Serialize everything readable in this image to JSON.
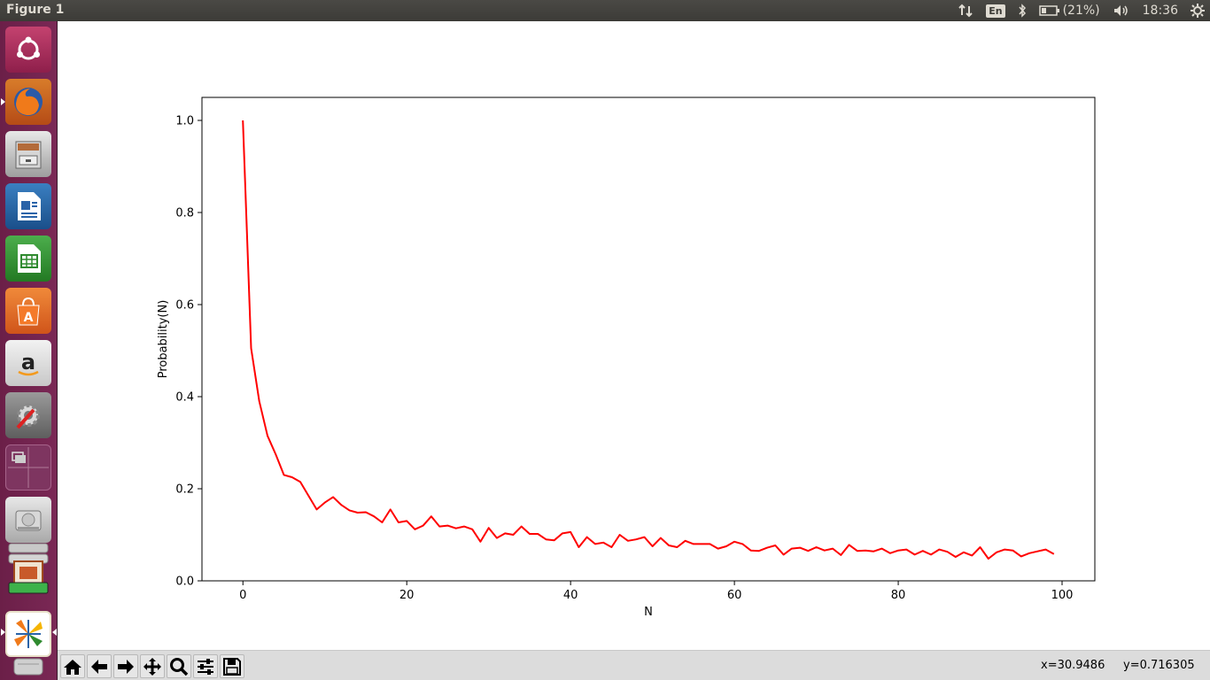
{
  "window": {
    "title": "Figure 1"
  },
  "panel": {
    "keyboard": "En",
    "battery": "(21%)",
    "time": "18:36"
  },
  "launcher": {
    "items": [
      "ubuntu-dash-icon",
      "firefox-icon",
      "files-icon",
      "libreoffice-writer-icon",
      "libreoffice-calc-icon",
      "software-center-icon",
      "amazon-icon",
      "system-settings-icon",
      "workspace-switcher-icon",
      "disk-drive-icon",
      "stacked-apps-icon",
      "python-figure-icon",
      "trash-icon"
    ]
  },
  "toolbar": {
    "buttons": [
      "home-icon",
      "back-icon",
      "forward-icon",
      "pan-icon",
      "zoom-icon",
      "configure-subplots-icon",
      "save-icon"
    ],
    "coord_x": "x=30.9486",
    "coord_y": "y=0.716305"
  },
  "chart_data": {
    "type": "line",
    "title": "",
    "xlabel": "N",
    "ylabel": "Probability(N)",
    "xlim": [
      -5,
      104
    ],
    "ylim": [
      0,
      1.05
    ],
    "xticks": [
      0,
      20,
      40,
      60,
      80,
      100
    ],
    "xtick_labels": [
      "0",
      "20",
      "40",
      "60",
      "80",
      "100"
    ],
    "yticks": [
      0.0,
      0.2,
      0.4,
      0.6,
      0.8,
      1.0
    ],
    "ytick_labels": [
      "0.0",
      "0.2",
      "0.4",
      "0.6",
      "0.8",
      "1.0"
    ],
    "grid": false,
    "series": [
      {
        "color": "#ff0000",
        "x": [
          0,
          1,
          2,
          3,
          4,
          5,
          6,
          7,
          8,
          9,
          10,
          11,
          12,
          13,
          14,
          15,
          16,
          17,
          18,
          19,
          20,
          21,
          22,
          23,
          24,
          25,
          26,
          27,
          28,
          29,
          30,
          31,
          32,
          33,
          34,
          35,
          36,
          37,
          38,
          39,
          40,
          41,
          42,
          43,
          44,
          45,
          46,
          47,
          48,
          49,
          50,
          51,
          52,
          53,
          54,
          55,
          56,
          57,
          58,
          59,
          60,
          61,
          62,
          63,
          64,
          65,
          66,
          67,
          68,
          69,
          70,
          71,
          72,
          73,
          74,
          75,
          76,
          77,
          78,
          79,
          80,
          81,
          82,
          83,
          84,
          85,
          86,
          87,
          88,
          89,
          90,
          91,
          92,
          93,
          94,
          95,
          96,
          97,
          98,
          99
        ],
        "y": [
          1.0,
          0.505,
          0.39,
          0.315,
          0.275,
          0.23,
          0.225,
          0.215,
          0.185,
          0.155,
          0.17,
          0.182,
          0.165,
          0.153,
          0.148,
          0.149,
          0.14,
          0.127,
          0.155,
          0.127,
          0.13,
          0.112,
          0.12,
          0.14,
          0.118,
          0.12,
          0.114,
          0.118,
          0.112,
          0.085,
          0.115,
          0.093,
          0.103,
          0.1,
          0.118,
          0.102,
          0.102,
          0.09,
          0.088,
          0.103,
          0.106,
          0.073,
          0.095,
          0.08,
          0.083,
          0.073,
          0.1,
          0.087,
          0.09,
          0.095,
          0.075,
          0.093,
          0.077,
          0.073,
          0.087,
          0.08,
          0.08,
          0.08,
          0.07,
          0.075,
          0.085,
          0.08,
          0.066,
          0.065,
          0.072,
          0.077,
          0.057,
          0.07,
          0.072,
          0.065,
          0.073,
          0.066,
          0.07,
          0.056,
          0.078,
          0.065,
          0.066,
          0.064,
          0.07,
          0.06,
          0.066,
          0.068,
          0.057,
          0.065,
          0.057,
          0.068,
          0.063,
          0.052,
          0.062,
          0.055,
          0.073,
          0.048,
          0.062,
          0.068,
          0.066,
          0.053,
          0.06,
          0.064,
          0.068,
          0.058
        ]
      }
    ]
  }
}
